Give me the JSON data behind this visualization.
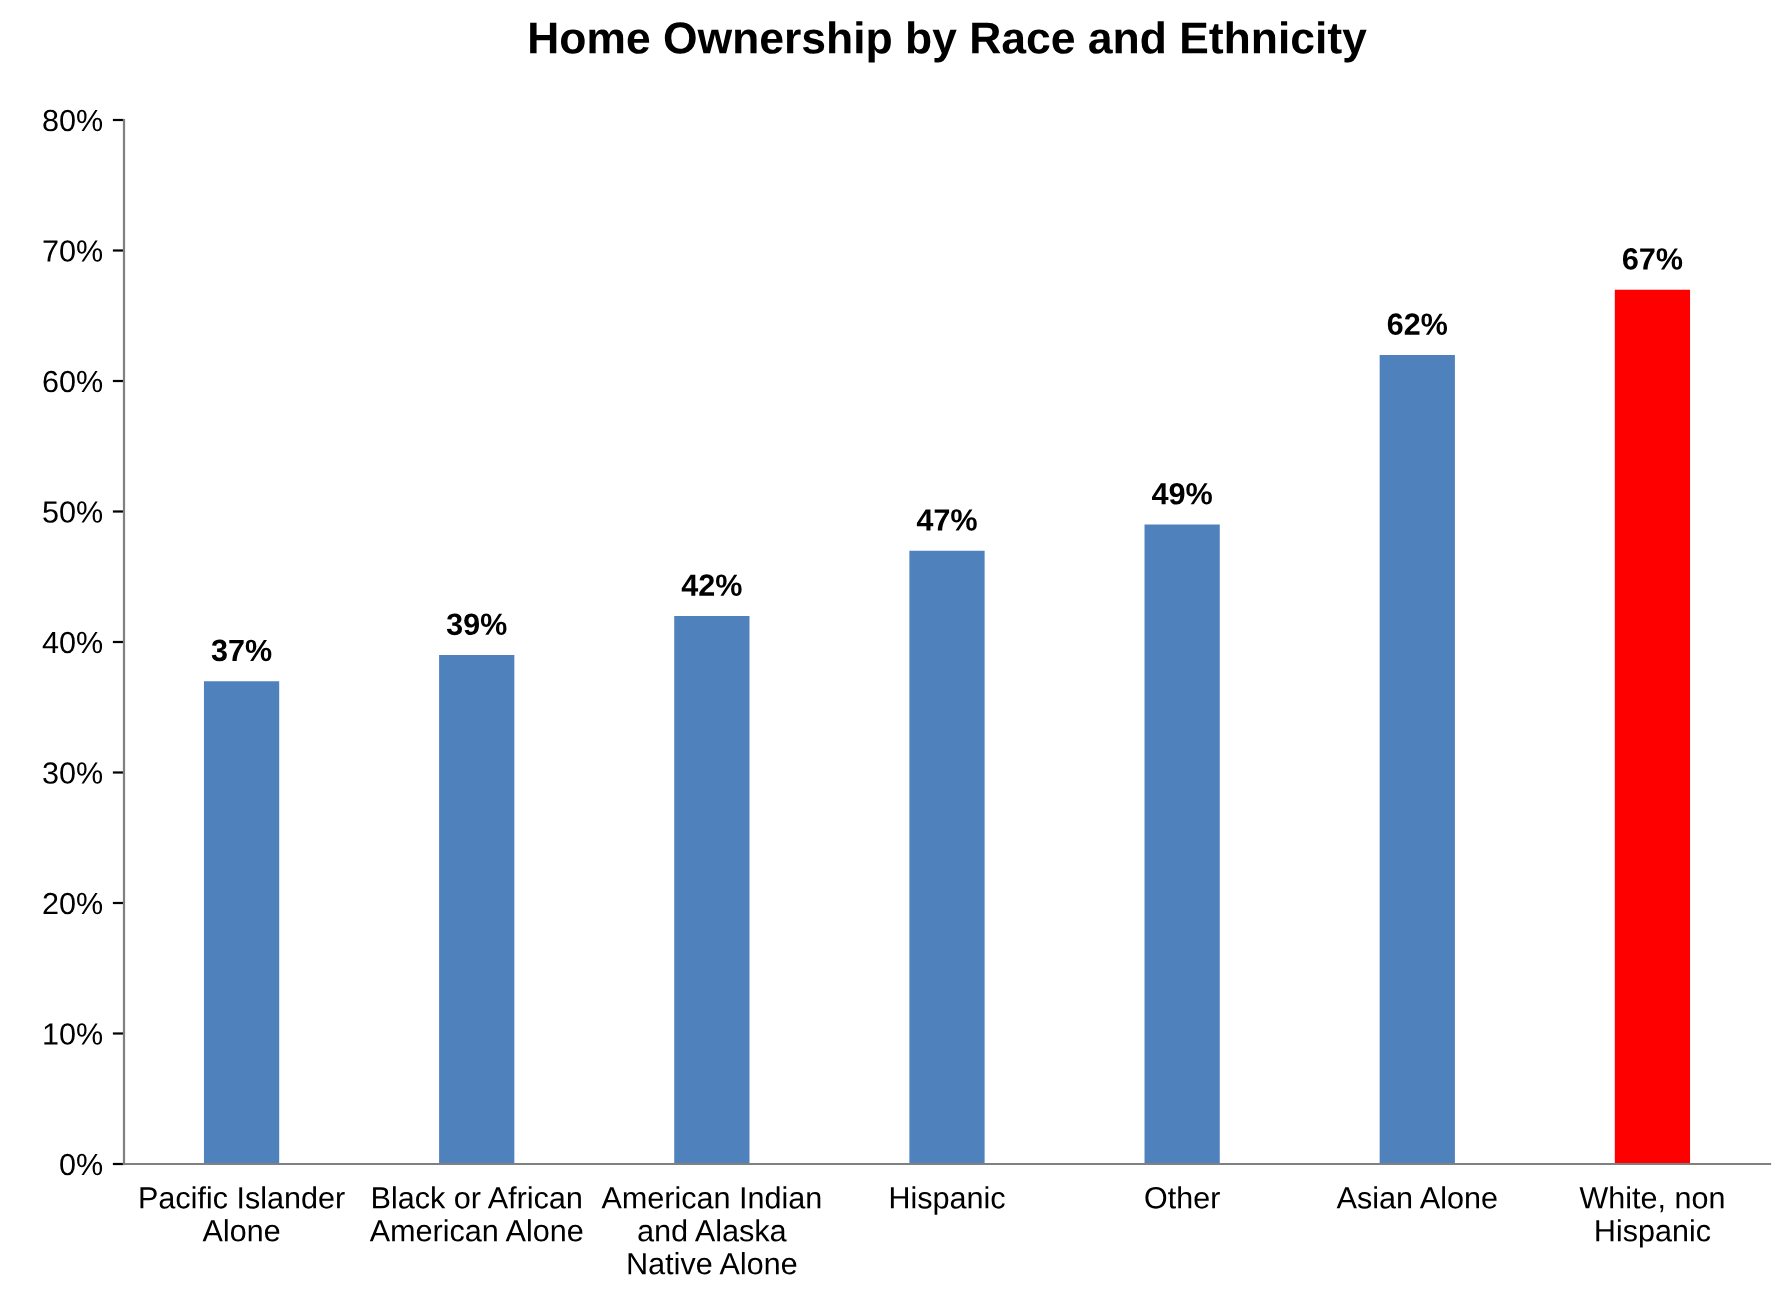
{
  "chart_data": {
    "type": "bar",
    "title": "Home Ownership by Race and Ethnicity",
    "categories": [
      "Pacific Islander\nAlone",
      "Black or African\nAmerican Alone",
      "American Indian\nand Alaska\nNative Alone",
      "Hispanic",
      "Other",
      "Asian Alone",
      "White, non\nHispanic"
    ],
    "values": [
      37,
      39,
      42,
      47,
      49,
      62,
      67
    ],
    "value_labels": [
      "37%",
      "39%",
      "42%",
      "47%",
      "49%",
      "62%",
      "67%"
    ],
    "colors": [
      "#4f81bd",
      "#4f81bd",
      "#4f81bd",
      "#4f81bd",
      "#4f81bd",
      "#4f81bd",
      "#ff0000"
    ],
    "ylim": [
      0,
      80
    ],
    "yticks": [
      {
        "value": 0,
        "label": "0%"
      },
      {
        "value": 10,
        "label": "10%"
      },
      {
        "value": 20,
        "label": "20%"
      },
      {
        "value": 30,
        "label": "30%"
      },
      {
        "value": 40,
        "label": "40%"
      },
      {
        "value": 50,
        "label": "50%"
      },
      {
        "value": 60,
        "label": "60%"
      },
      {
        "value": 70,
        "label": "70%"
      },
      {
        "value": 80,
        "label": "80%"
      }
    ],
    "grid": false,
    "legend": false
  }
}
